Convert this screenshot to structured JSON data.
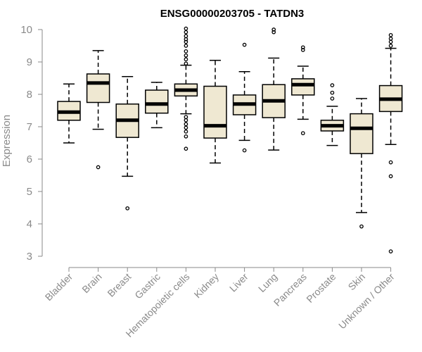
{
  "chart_data": {
    "type": "boxplot",
    "title": "ENSG00000203705 - TATDN3",
    "xlabel": "",
    "ylabel": "Expression",
    "ylim": [
      3,
      10
    ],
    "yticks": [
      "3",
      "4",
      "5",
      "6",
      "7",
      "8",
      "9",
      "10"
    ],
    "grid": false,
    "legend": "none",
    "colors": {
      "box_fill": "#efe8d2",
      "box_stroke": "#000000",
      "median": "#000000",
      "axis": "#8a8a8a"
    },
    "categories": [
      "Bladder",
      "Brain",
      "Breast",
      "Gastric",
      "Hematopoietic cells",
      "Kidney",
      "Liver",
      "Lung",
      "Pancreas",
      "Prostate",
      "Skin",
      "Unknown / Other"
    ],
    "boxes": [
      {
        "category": "Bladder",
        "whisker_low": 6.5,
        "q1": 7.2,
        "median": 7.45,
        "q3": 7.78,
        "whisker_high": 8.32,
        "outliers": []
      },
      {
        "category": "Brain",
        "whisker_low": 6.92,
        "q1": 7.75,
        "median": 8.35,
        "q3": 8.63,
        "whisker_high": 9.35,
        "outliers": [
          5.75
        ]
      },
      {
        "category": "Breast",
        "whisker_low": 5.47,
        "q1": 6.67,
        "median": 7.2,
        "q3": 7.7,
        "whisker_high": 8.55,
        "outliers": [
          4.48
        ]
      },
      {
        "category": "Gastric",
        "whisker_low": 6.97,
        "q1": 7.42,
        "median": 7.7,
        "q3": 8.13,
        "whisker_high": 8.37,
        "outliers": []
      },
      {
        "category": "Hematopoietic cells",
        "whisker_low": 7.4,
        "q1": 7.95,
        "median": 8.13,
        "q3": 8.32,
        "whisker_high": 8.9,
        "outliers": [
          6.32,
          6.7,
          6.85,
          6.97,
          7.08,
          7.2,
          7.3,
          8.95,
          9.08,
          9.2,
          9.33,
          9.5,
          9.62,
          9.7,
          9.8,
          9.92,
          10.03
        ]
      },
      {
        "category": "Kidney",
        "whisker_low": 5.88,
        "q1": 6.65,
        "median": 7.03,
        "q3": 8.25,
        "whisker_high": 9.05,
        "outliers": []
      },
      {
        "category": "Liver",
        "whisker_low": 6.58,
        "q1": 7.37,
        "median": 7.7,
        "q3": 7.98,
        "whisker_high": 8.7,
        "outliers": [
          6.27,
          9.53
        ]
      },
      {
        "category": "Lung",
        "whisker_low": 6.28,
        "q1": 7.28,
        "median": 7.8,
        "q3": 8.3,
        "whisker_high": 9.12,
        "outliers": [
          9.92,
          10.0
        ]
      },
      {
        "category": "Pancreas",
        "whisker_low": 7.23,
        "q1": 7.98,
        "median": 8.3,
        "q3": 8.48,
        "whisker_high": 8.87,
        "outliers": [
          6.8,
          9.37,
          9.45
        ]
      },
      {
        "category": "Prostate",
        "whisker_low": 6.42,
        "q1": 6.87,
        "median": 7.03,
        "q3": 7.2,
        "whisker_high": 7.63,
        "outliers": [
          7.87,
          8.05,
          8.28
        ]
      },
      {
        "category": "Skin",
        "whisker_low": 4.35,
        "q1": 6.17,
        "median": 6.95,
        "q3": 7.4,
        "whisker_high": 7.87,
        "outliers": [
          3.92
        ]
      },
      {
        "category": "Unknown / Other",
        "whisker_low": 6.45,
        "q1": 7.47,
        "median": 7.85,
        "q3": 8.27,
        "whisker_high": 9.42,
        "outliers": [
          3.15,
          5.47,
          5.9,
          9.5,
          9.62,
          9.72,
          9.83
        ]
      }
    ]
  }
}
